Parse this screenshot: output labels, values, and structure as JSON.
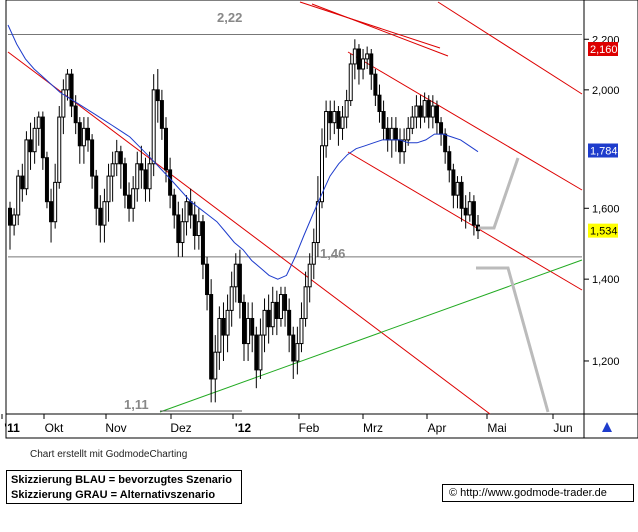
{
  "chart_data": {
    "type": "candlestick",
    "x_labels": [
      "'11",
      "Okt",
      "Nov",
      "Dez",
      "'12",
      "Feb",
      "Mrz",
      "Apr",
      "Mai",
      "Jun"
    ],
    "y_ticks": [
      1.2,
      1.4,
      1.6,
      1.784,
      2.0,
      2.16,
      2.2
    ],
    "y_tick_labels": [
      "1,200",
      "1,400",
      "1,600",
      "1,784",
      "2,000",
      "2,160",
      "2,200"
    ],
    "ylim": [
      1.09,
      2.36
    ],
    "y_scale": "log",
    "current_price_label": "1,534",
    "current_price": 1.534,
    "ma_label": "1,784",
    "ma_value": 1.784,
    "upper_price_label": "2,160",
    "upper_price": 2.16,
    "horizontal_levels": [
      {
        "value": 2.22,
        "label": "2,22"
      },
      {
        "value": 1.46,
        "label": "1,46"
      }
    ],
    "low_annotation": {
      "value": 1.11,
      "label": "1,11"
    },
    "candles": [
      [
        1.6,
        1.55,
        1.48,
        1.62
      ],
      [
        1.55,
        1.58,
        1.52,
        1.6
      ],
      [
        1.58,
        1.7,
        1.55,
        1.72
      ],
      [
        1.7,
        1.66,
        1.62,
        1.74
      ],
      [
        1.66,
        1.82,
        1.64,
        1.85
      ],
      [
        1.82,
        1.78,
        1.72,
        1.88
      ],
      [
        1.78,
        1.86,
        1.74,
        1.9
      ],
      [
        1.86,
        1.9,
        1.8,
        1.92
      ],
      [
        1.9,
        1.76,
        1.72,
        1.92
      ],
      [
        1.76,
        1.62,
        1.6,
        1.78
      ],
      [
        1.62,
        1.56,
        1.5,
        1.66
      ],
      [
        1.56,
        1.68,
        1.54,
        1.74
      ],
      [
        1.68,
        1.9,
        1.66,
        1.94
      ],
      [
        1.9,
        2.0,
        1.84,
        2.04
      ],
      [
        2.0,
        2.06,
        1.96,
        2.08
      ],
      [
        2.06,
        1.94,
        1.9,
        2.08
      ],
      [
        1.94,
        1.88,
        1.84,
        1.98
      ],
      [
        1.88,
        1.8,
        1.74,
        1.9
      ],
      [
        1.8,
        1.86,
        1.74,
        1.9
      ],
      [
        1.86,
        1.82,
        1.78,
        1.9
      ],
      [
        1.82,
        1.7,
        1.66,
        1.84
      ],
      [
        1.7,
        1.6,
        1.55,
        1.72
      ],
      [
        1.6,
        1.55,
        1.5,
        1.64
      ],
      [
        1.55,
        1.62,
        1.5,
        1.66
      ],
      [
        1.62,
        1.7,
        1.56,
        1.74
      ],
      [
        1.7,
        1.74,
        1.62,
        1.78
      ],
      [
        1.74,
        1.78,
        1.7,
        1.82
      ],
      [
        1.78,
        1.74,
        1.66,
        1.8
      ],
      [
        1.74,
        1.64,
        1.6,
        1.76
      ],
      [
        1.64,
        1.6,
        1.56,
        1.68
      ],
      [
        1.6,
        1.66,
        1.56,
        1.7
      ],
      [
        1.66,
        1.74,
        1.62,
        1.78
      ],
      [
        1.74,
        1.72,
        1.66,
        1.8
      ],
      [
        1.72,
        1.66,
        1.62,
        1.76
      ],
      [
        1.66,
        1.74,
        1.62,
        1.78
      ],
      [
        1.74,
        2.0,
        1.7,
        2.06
      ],
      [
        2.0,
        1.96,
        1.88,
        2.08
      ],
      [
        1.96,
        1.86,
        1.82,
        2.0
      ],
      [
        1.86,
        1.72,
        1.68,
        1.9
      ],
      [
        1.72,
        1.64,
        1.6,
        1.76
      ],
      [
        1.64,
        1.58,
        1.54,
        1.66
      ],
      [
        1.58,
        1.5,
        1.46,
        1.62
      ],
      [
        1.5,
        1.56,
        1.46,
        1.6
      ],
      [
        1.56,
        1.62,
        1.52,
        1.64
      ],
      [
        1.62,
        1.58,
        1.54,
        1.66
      ],
      [
        1.58,
        1.52,
        1.48,
        1.62
      ],
      [
        1.52,
        1.56,
        1.48,
        1.6
      ],
      [
        1.56,
        1.44,
        1.4,
        1.58
      ],
      [
        1.44,
        1.36,
        1.32,
        1.46
      ],
      [
        1.36,
        1.16,
        1.11,
        1.4
      ],
      [
        1.16,
        1.22,
        1.11,
        1.26
      ],
      [
        1.22,
        1.3,
        1.18,
        1.33
      ],
      [
        1.3,
        1.26,
        1.2,
        1.34
      ],
      [
        1.26,
        1.32,
        1.22,
        1.36
      ],
      [
        1.32,
        1.38,
        1.28,
        1.42
      ],
      [
        1.38,
        1.44,
        1.34,
        1.47
      ],
      [
        1.44,
        1.34,
        1.3,
        1.48
      ],
      [
        1.34,
        1.24,
        1.2,
        1.36
      ],
      [
        1.24,
        1.3,
        1.2,
        1.34
      ],
      [
        1.3,
        1.26,
        1.22,
        1.34
      ],
      [
        1.26,
        1.18,
        1.14,
        1.28
      ],
      [
        1.18,
        1.26,
        1.16,
        1.3
      ],
      [
        1.26,
        1.32,
        1.22,
        1.35
      ],
      [
        1.32,
        1.28,
        1.24,
        1.36
      ],
      [
        1.28,
        1.34,
        1.26,
        1.38
      ],
      [
        1.34,
        1.3,
        1.26,
        1.37
      ],
      [
        1.3,
        1.36,
        1.28,
        1.38
      ],
      [
        1.36,
        1.32,
        1.28,
        1.38
      ],
      [
        1.32,
        1.26,
        1.22,
        1.35
      ],
      [
        1.26,
        1.2,
        1.16,
        1.28
      ],
      [
        1.2,
        1.24,
        1.17,
        1.28
      ],
      [
        1.24,
        1.3,
        1.22,
        1.34
      ],
      [
        1.3,
        1.38,
        1.28,
        1.42
      ],
      [
        1.38,
        1.44,
        1.34,
        1.47
      ],
      [
        1.44,
        1.5,
        1.4,
        1.54
      ],
      [
        1.5,
        1.62,
        1.46,
        1.7
      ],
      [
        1.62,
        1.8,
        1.6,
        1.86
      ],
      [
        1.8,
        1.92,
        1.76,
        1.96
      ],
      [
        1.92,
        1.88,
        1.82,
        1.96
      ],
      [
        1.88,
        1.92,
        1.84,
        1.96
      ],
      [
        1.92,
        1.86,
        1.8,
        1.94
      ],
      [
        1.86,
        1.9,
        1.82,
        1.94
      ],
      [
        1.9,
        1.96,
        1.86,
        2.0
      ],
      [
        1.96,
        2.1,
        1.94,
        2.14
      ],
      [
        2.1,
        2.16,
        2.04,
        2.2
      ],
      [
        2.16,
        2.08,
        2.02,
        2.18
      ],
      [
        2.08,
        2.12,
        2.04,
        2.16
      ],
      [
        2.12,
        2.14,
        2.08,
        2.17
      ],
      [
        2.14,
        2.06,
        2.0,
        2.16
      ],
      [
        2.06,
        1.98,
        1.94,
        2.08
      ],
      [
        1.98,
        1.92,
        1.88,
        2.02
      ],
      [
        1.92,
        1.86,
        1.82,
        1.96
      ],
      [
        1.86,
        1.82,
        1.78,
        1.9
      ],
      [
        1.82,
        1.86,
        1.76,
        1.9
      ],
      [
        1.86,
        1.82,
        1.78,
        1.9
      ],
      [
        1.82,
        1.78,
        1.74,
        1.86
      ],
      [
        1.78,
        1.82,
        1.74,
        1.86
      ],
      [
        1.82,
        1.86,
        1.8,
        1.9
      ],
      [
        1.86,
        1.9,
        1.84,
        1.94
      ],
      [
        1.9,
        1.94,
        1.86,
        1.98
      ],
      [
        1.94,
        1.9,
        1.86,
        1.98
      ],
      [
        1.9,
        1.96,
        1.88,
        1.99
      ],
      [
        1.96,
        1.9,
        1.86,
        1.98
      ],
      [
        1.9,
        1.94,
        1.86,
        1.98
      ],
      [
        1.94,
        1.88,
        1.84,
        1.96
      ],
      [
        1.88,
        1.84,
        1.8,
        1.9
      ],
      [
        1.84,
        1.78,
        1.74,
        1.86
      ],
      [
        1.78,
        1.72,
        1.68,
        1.8
      ],
      [
        1.72,
        1.64,
        1.6,
        1.74
      ],
      [
        1.64,
        1.68,
        1.6,
        1.7
      ],
      [
        1.68,
        1.6,
        1.56,
        1.7
      ],
      [
        1.6,
        1.58,
        1.54,
        1.64
      ],
      [
        1.58,
        1.62,
        1.56,
        1.65
      ],
      [
        1.62,
        1.55,
        1.52,
        1.64
      ],
      [
        1.55,
        1.534,
        1.51,
        1.58
      ]
    ],
    "moving_average": [
      2.26,
      2.18,
      2.12,
      2.08,
      2.05,
      2.02,
      1.99,
      1.97,
      1.95,
      1.93,
      1.91,
      1.89,
      1.87,
      1.85,
      1.83,
      1.8,
      1.77,
      1.74,
      1.71,
      1.68,
      1.65,
      1.62,
      1.6,
      1.58,
      1.56,
      1.53,
      1.5,
      1.48,
      1.45,
      1.43,
      1.41,
      1.4,
      1.41,
      1.46,
      1.52,
      1.58,
      1.64,
      1.7,
      1.74,
      1.77,
      1.79,
      1.8,
      1.81,
      1.82,
      1.82,
      1.82,
      1.81,
      1.81,
      1.82,
      1.84,
      1.84,
      1.83,
      1.82,
      1.8,
      1.78
    ],
    "scenarios": [
      "Skizzierung BLAU = bevorzugtes Szenario",
      "Skizzierung GRAU = Alternativszenario"
    ]
  },
  "footer": {
    "credit": "Chart erstellt mit GodmodeCharting",
    "legend_blue": "Skizzierung BLAU = bevorzugtes Szenario",
    "legend_grey": "Skizzierung GRAU = Alternativszenario",
    "copyright_symbol": "©",
    "source_url": "http://www.godmode-trader.de"
  },
  "colors": {
    "candle": "#000000",
    "ma": "#1e3ccc",
    "trend_red": "#dd0000",
    "trend_green": "#22aa22",
    "scenario_grey": "#bbbbbb",
    "price_label_bg": "#ffff00",
    "ma_label_bg": "#1e3ccc",
    "upper_label_bg": "#dd0000",
    "axis_bg": "#ffffff"
  }
}
